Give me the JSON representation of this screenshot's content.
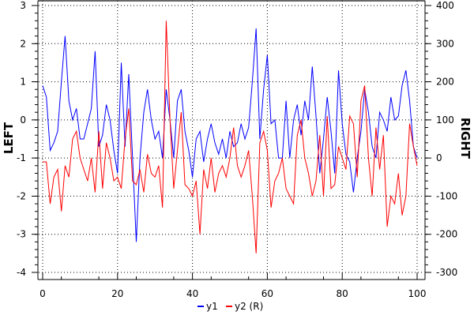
{
  "chart_data": {
    "type": "line",
    "title": "",
    "xlabel": "",
    "ylabel": "LEFT",
    "y2label": "RIGHT",
    "xlim": [
      0,
      100
    ],
    "ylim": [
      -4,
      3
    ],
    "y2lim": [
      -300,
      400
    ],
    "grid": true,
    "legend": "bottom",
    "x_ticks": [
      "0",
      "20",
      "40",
      "60",
      "80",
      "100"
    ],
    "y_ticks": [
      "3",
      "2",
      "1",
      "0",
      "-1",
      "-2",
      "-3",
      "-4"
    ],
    "y2_ticks": [
      "400",
      "300",
      "200",
      "100",
      "0",
      "-100",
      "-200",
      "-300"
    ],
    "x": [
      0,
      1,
      2,
      3,
      4,
      5,
      6,
      7,
      8,
      9,
      10,
      11,
      12,
      13,
      14,
      15,
      16,
      17,
      18,
      19,
      20,
      21,
      22,
      23,
      24,
      25,
      26,
      27,
      28,
      29,
      30,
      31,
      32,
      33,
      34,
      35,
      36,
      37,
      38,
      39,
      40,
      41,
      42,
      43,
      44,
      45,
      46,
      47,
      48,
      49,
      50,
      51,
      52,
      53,
      54,
      55,
      56,
      57,
      58,
      59,
      60,
      61,
      62,
      63,
      64,
      65,
      66,
      67,
      68,
      69,
      70,
      71,
      72,
      73,
      74,
      75,
      76,
      77,
      78,
      79,
      80,
      81,
      82,
      83,
      84,
      85,
      86,
      87,
      88,
      89,
      90,
      91,
      92,
      93,
      94,
      95,
      96,
      97,
      98,
      99,
      100
    ],
    "series": [
      {
        "name": "y1",
        "axis": "left",
        "color": "#0000ff",
        "values": [
          0.9,
          0.6,
          -0.8,
          -0.6,
          -0.3,
          1.0,
          2.2,
          0.5,
          0.0,
          0.3,
          -0.5,
          -0.5,
          -0.1,
          0.3,
          1.8,
          -0.7,
          -0.4,
          0.4,
          0.0,
          -0.8,
          -1.4,
          1.5,
          -0.7,
          1.2,
          -1.0,
          -3.2,
          -1.0,
          0.2,
          0.8,
          0.0,
          -0.5,
          -0.3,
          -1.0,
          0.8,
          0.0,
          -1.0,
          0.5,
          0.8,
          -0.3,
          -0.8,
          -1.5,
          -0.5,
          -0.3,
          -1.1,
          -0.5,
          -0.1,
          -0.6,
          -0.9,
          -0.5,
          -1.0,
          -0.3,
          -0.7,
          -0.6,
          -0.1,
          -0.5,
          -0.2,
          1.0,
          2.4,
          -0.5,
          0.8,
          1.7,
          -0.1,
          0.0,
          -1.0,
          -1.0,
          0.5,
          -1.0,
          0.0,
          0.4,
          -0.4,
          0.5,
          0.0,
          1.4,
          0.1,
          -1.4,
          -0.5,
          0.6,
          -0.3,
          -1.4,
          1.3,
          -0.1,
          -0.9,
          -1.1,
          -1.9,
          -1.0,
          -0.3,
          0.8,
          0.2,
          -0.7,
          -1.0,
          0.2,
          0.0,
          -0.3,
          0.6,
          0.0,
          0.1,
          0.9,
          1.3,
          0.5,
          -0.7,
          -1.0
        ]
      },
      {
        "name": "y2 (R)",
        "axis": "right",
        "color": "#ff0000",
        "values": [
          -10,
          -10,
          -120,
          -50,
          -30,
          -140,
          -20,
          -50,
          50,
          70,
          0,
          -30,
          -60,
          0,
          -90,
          70,
          -80,
          40,
          0,
          -60,
          -50,
          -80,
          50,
          130,
          -60,
          -70,
          -30,
          -90,
          10,
          -40,
          -50,
          -20,
          -130,
          360,
          100,
          -80,
          20,
          120,
          -70,
          -80,
          -100,
          -60,
          -200,
          -30,
          -80,
          0,
          -90,
          -40,
          -20,
          -50,
          0,
          80,
          -20,
          -50,
          -20,
          20,
          -100,
          -250,
          40,
          70,
          20,
          -130,
          -60,
          -40,
          0,
          -80,
          -100,
          -120,
          60,
          100,
          0,
          -40,
          -100,
          -60,
          60,
          -100,
          110,
          -80,
          -70,
          30,
          0,
          -30,
          110,
          90,
          -50,
          150,
          190,
          0,
          -100,
          80,
          -30,
          60,
          -180,
          -100,
          -120,
          -40,
          -150,
          -100,
          90,
          30,
          -20
        ]
      }
    ]
  }
}
